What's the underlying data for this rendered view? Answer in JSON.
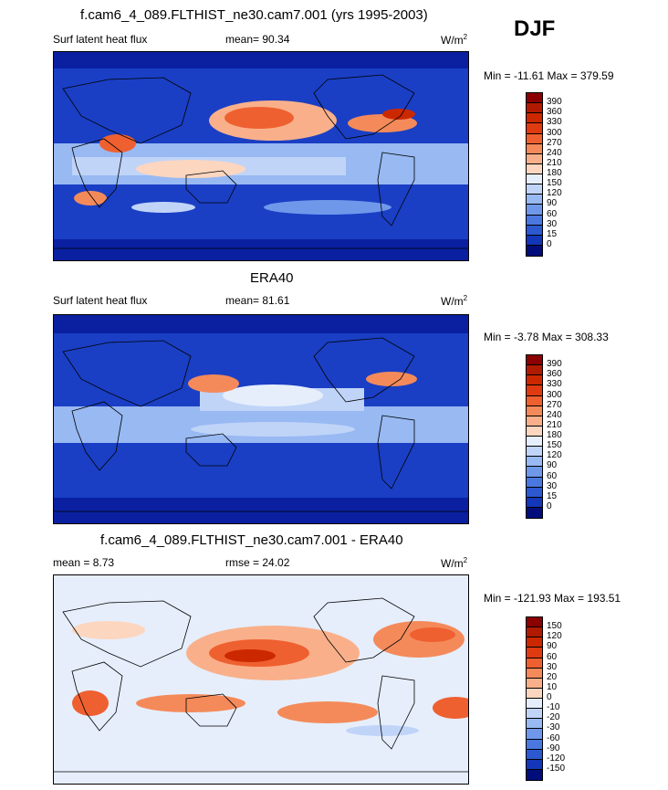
{
  "header": {
    "title_top": "f.cam6_4_089.FLTHIST_ne30.cam7.001 (yrs 1995-2003)",
    "season": "DJF"
  },
  "panels": [
    {
      "title": "",
      "left_label": "Surf latent heat flux",
      "center_label": "mean=  90.34",
      "units_base": "W/m",
      "units_exp": "2",
      "minmax": "Min = -11.61 Max = 379.59",
      "colorbar": {
        "labels": [
          "390",
          "360",
          "330",
          "300",
          "270",
          "240",
          "210",
          "180",
          "150",
          "120",
          "90",
          "60",
          "30",
          "15",
          "0"
        ],
        "colors": [
          "#8b0000",
          "#b01a00",
          "#cc2800",
          "#e03a10",
          "#ef6030",
          "#f48a5a",
          "#f9b08a",
          "#fcd6bf",
          "#e6eefc",
          "#c0d4f8",
          "#98b9f2",
          "#6f98ea",
          "#4a78e0",
          "#2c58d0",
          "#1436b8",
          "#000d7a"
        ]
      }
    },
    {
      "title": "ERA40",
      "left_label": "Surf latent heat flux",
      "center_label": "mean=  81.61",
      "units_base": "W/m",
      "units_exp": "2",
      "minmax": "Min =  -3.78 Max = 308.33",
      "colorbar": {
        "labels": [
          "390",
          "360",
          "330",
          "300",
          "270",
          "240",
          "210",
          "180",
          "150",
          "120",
          "90",
          "60",
          "30",
          "15",
          "0"
        ],
        "colors": [
          "#8b0000",
          "#b01a00",
          "#cc2800",
          "#e03a10",
          "#ef6030",
          "#f48a5a",
          "#f9b08a",
          "#fcd6bf",
          "#e6eefc",
          "#c0d4f8",
          "#98b9f2",
          "#6f98ea",
          "#4a78e0",
          "#2c58d0",
          "#1436b8",
          "#000d7a"
        ]
      }
    },
    {
      "title": "f.cam6_4_089.FLTHIST_ne30.cam7.001 - ERA40",
      "left_label": "mean =   8.73",
      "center_label": "rmse =  24.02",
      "units_base": "W/m",
      "units_exp": "2",
      "minmax": "Min = -121.93 Max = 193.51",
      "colorbar": {
        "labels": [
          "150",
          "120",
          "90",
          "60",
          "30",
          "20",
          "10",
          "0",
          "-10",
          "-20",
          "-30",
          "-60",
          "-90",
          "-120",
          "-150"
        ],
        "colors": [
          "#8b0000",
          "#b01a00",
          "#cc2800",
          "#e03a10",
          "#ef6030",
          "#f48a5a",
          "#f9b08a",
          "#fcd6bf",
          "#e6eefc",
          "#c0d4f8",
          "#98b9f2",
          "#6f98ea",
          "#4a78e0",
          "#2c58d0",
          "#1436b8",
          "#000d7a"
        ]
      }
    }
  ]
}
